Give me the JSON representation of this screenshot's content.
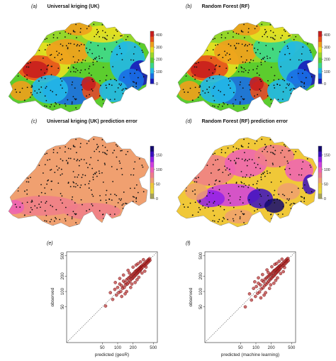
{
  "panels": {
    "a": {
      "label": "(a)",
      "title": "Universal kriging (UK)"
    },
    "b": {
      "label": "(b)",
      "title": "Random Forest (RF)"
    },
    "c": {
      "label": "(c)",
      "title": "Universal kriging (UK) prediction error"
    },
    "d": {
      "label": "(d)",
      "title": "Random Forest (RF) prediction error"
    },
    "e": {
      "label": "(e)"
    },
    "f": {
      "label": "(f)"
    }
  },
  "colors": {
    "prediction_ramp": [
      "#1a1ab8",
      "#1a6ee6",
      "#22b8e8",
      "#3ad88a",
      "#5ccd2e",
      "#9ad82a",
      "#e8e020",
      "#f0a01c",
      "#e8501c",
      "#c81e1e"
    ],
    "error_ramp": [
      "#a7a35a",
      "#e8d83a",
      "#f0c838",
      "#f0a070",
      "#f07c8c",
      "#ee60b8",
      "#d040e0",
      "#9020e8",
      "#3a10c0",
      "#140a70"
    ],
    "scatter_point": "#b01e1e",
    "station_point": "#111111"
  },
  "chart_data": [
    {
      "type": "heatmap",
      "title": "Universal kriging (UK)",
      "colorbar_ticks": [
        "0",
        "100",
        "200",
        "300",
        "400"
      ],
      "colorbar_range": [
        0,
        430
      ]
    },
    {
      "type": "heatmap",
      "title": "Random Forest (RF)",
      "colorbar_ticks": [
        "0",
        "100",
        "200",
        "300",
        "400"
      ],
      "colorbar_range": [
        0,
        430
      ]
    },
    {
      "type": "heatmap",
      "title": "Universal kriging (UK) prediction error",
      "colorbar_ticks": [
        "0",
        "50",
        "100",
        "150"
      ],
      "colorbar_range": [
        0,
        180
      ]
    },
    {
      "type": "heatmap",
      "title": "Random Forest (RF) prediction error",
      "colorbar_ticks": [
        "0",
        "50",
        "100",
        "150"
      ],
      "colorbar_range": [
        0,
        180
      ]
    },
    {
      "type": "scatter",
      "xlabel": "predicted (geoR)",
      "ylabel": "observed",
      "log_axes": true,
      "xlim": [
        10,
        600
      ],
      "ylim": [
        10,
        600
      ],
      "xticks": [
        "50",
        "100",
        "200",
        "500"
      ],
      "yticks": [
        "50",
        "100",
        "200",
        "500"
      ],
      "reference_line": "1:1",
      "points": [
        [
          58,
          52
        ],
        [
          72,
          95
        ],
        [
          80,
          70
        ],
        [
          88,
          110
        ],
        [
          95,
          85
        ],
        [
          100,
          120
        ],
        [
          105,
          95
        ],
        [
          110,
          140
        ],
        [
          115,
          100
        ],
        [
          120,
          130
        ],
        [
          125,
          115
        ],
        [
          130,
          160
        ],
        [
          135,
          120
        ],
        [
          140,
          150
        ],
        [
          145,
          135
        ],
        [
          150,
          170
        ],
        [
          155,
          140
        ],
        [
          160,
          180
        ],
        [
          165,
          150
        ],
        [
          170,
          190
        ],
        [
          175,
          160
        ],
        [
          180,
          200
        ],
        [
          185,
          175
        ],
        [
          190,
          210
        ],
        [
          195,
          180
        ],
        [
          200,
          220
        ],
        [
          205,
          190
        ],
        [
          210,
          230
        ],
        [
          215,
          200
        ],
        [
          220,
          245
        ],
        [
          225,
          210
        ],
        [
          230,
          255
        ],
        [
          235,
          220
        ],
        [
          240,
          260
        ],
        [
          245,
          230
        ],
        [
          250,
          270
        ],
        [
          255,
          240
        ],
        [
          260,
          280
        ],
        [
          265,
          250
        ],
        [
          270,
          290
        ],
        [
          275,
          260
        ],
        [
          280,
          300
        ],
        [
          285,
          270
        ],
        [
          290,
          310
        ],
        [
          295,
          280
        ],
        [
          300,
          320
        ],
        [
          310,
          300
        ],
        [
          320,
          340
        ],
        [
          330,
          320
        ],
        [
          340,
          360
        ],
        [
          350,
          330
        ],
        [
          360,
          380
        ],
        [
          370,
          350
        ],
        [
          380,
          400
        ],
        [
          390,
          370
        ],
        [
          400,
          420
        ],
        [
          410,
          390
        ],
        [
          420,
          440
        ],
        [
          430,
          410
        ],
        [
          150,
          100
        ],
        [
          130,
          210
        ],
        [
          180,
          120
        ],
        [
          110,
          180
        ],
        [
          240,
          170
        ],
        [
          200,
          300
        ],
        [
          160,
          260
        ],
        [
          260,
          190
        ],
        [
          300,
          230
        ],
        [
          90,
          150
        ],
        [
          120,
          80
        ],
        [
          220,
          150
        ],
        [
          280,
          380
        ],
        [
          340,
          250
        ],
        [
          190,
          140
        ],
        [
          140,
          90
        ],
        [
          230,
          330
        ],
        [
          170,
          230
        ],
        [
          320,
          420
        ],
        [
          360,
          300
        ],
        [
          250,
          350
        ]
      ]
    },
    {
      "type": "scatter",
      "xlabel": "predicted (machine learning)",
      "ylabel": "observed",
      "log_axes": true,
      "xlim": [
        10,
        600
      ],
      "ylim": [
        10,
        600
      ],
      "xticks": [
        "50",
        "100",
        "200",
        "500"
      ],
      "yticks": [
        "50",
        "100",
        "200",
        "500"
      ],
      "reference_line": "1:1",
      "points": [
        [
          62,
          50
        ],
        [
          75,
          90
        ],
        [
          82,
          68
        ],
        [
          90,
          115
        ],
        [
          98,
          80
        ],
        [
          102,
          125
        ],
        [
          108,
          92
        ],
        [
          112,
          145
        ],
        [
          118,
          98
        ],
        [
          122,
          135
        ],
        [
          128,
          112
        ],
        [
          132,
          165
        ],
        [
          138,
          118
        ],
        [
          142,
          155
        ],
        [
          148,
          130
        ],
        [
          152,
          175
        ],
        [
          158,
          138
        ],
        [
          162,
          185
        ],
        [
          168,
          148
        ],
        [
          172,
          195
        ],
        [
          178,
          158
        ],
        [
          182,
          205
        ],
        [
          188,
          170
        ],
        [
          192,
          215
        ],
        [
          198,
          178
        ],
        [
          202,
          225
        ],
        [
          208,
          188
        ],
        [
          212,
          235
        ],
        [
          218,
          198
        ],
        [
          222,
          250
        ],
        [
          228,
          205
        ],
        [
          232,
          260
        ],
        [
          238,
          218
        ],
        [
          242,
          265
        ],
        [
          248,
          228
        ],
        [
          252,
          275
        ],
        [
          258,
          238
        ],
        [
          262,
          285
        ],
        [
          268,
          248
        ],
        [
          272,
          295
        ],
        [
          278,
          258
        ],
        [
          282,
          305
        ],
        [
          288,
          268
        ],
        [
          292,
          315
        ],
        [
          298,
          278
        ],
        [
          302,
          325
        ],
        [
          312,
          298
        ],
        [
          322,
          345
        ],
        [
          332,
          318
        ],
        [
          342,
          365
        ],
        [
          352,
          328
        ],
        [
          362,
          385
        ],
        [
          372,
          348
        ],
        [
          382,
          405
        ],
        [
          392,
          368
        ],
        [
          402,
          425
        ],
        [
          412,
          388
        ],
        [
          422,
          445
        ],
        [
          432,
          405
        ],
        [
          155,
          95
        ],
        [
          135,
          215
        ],
        [
          185,
          115
        ],
        [
          112,
          185
        ],
        [
          245,
          165
        ],
        [
          205,
          305
        ],
        [
          165,
          265
        ],
        [
          265,
          185
        ],
        [
          305,
          225
        ],
        [
          95,
          155
        ],
        [
          125,
          75
        ],
        [
          225,
          145
        ],
        [
          285,
          390
        ],
        [
          345,
          245
        ],
        [
          195,
          135
        ],
        [
          145,
          85
        ],
        [
          235,
          340
        ],
        [
          175,
          235
        ],
        [
          325,
          430
        ],
        [
          365,
          295
        ],
        [
          255,
          355
        ]
      ]
    }
  ]
}
